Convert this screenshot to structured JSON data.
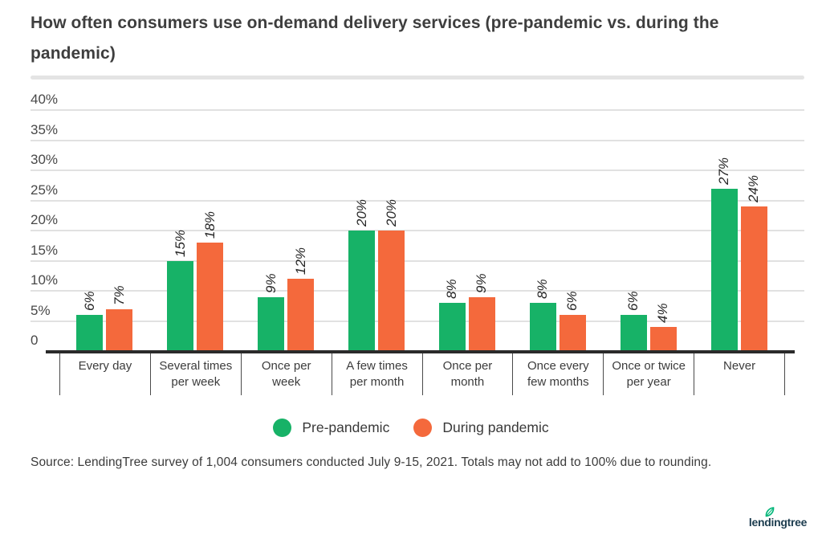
{
  "title_display": "How often consumers use on-demand delivery services (pre-pandemic vs. during the\npandemic)",
  "chart_data": {
    "type": "bar",
    "title": "How often consumers use on-demand delivery services (pre-pandemic vs. during the pandemic)",
    "categories": [
      "Every day",
      "Several times per week",
      "Once per week",
      "A few times per month",
      "Once per month",
      "Once every few months",
      "Once or twice per year",
      "Never"
    ],
    "category_display": [
      "Every day",
      "Several times\nper week",
      "Once per\nweek",
      "A few times\nper month",
      "Once per\nmonth",
      "Once every\nfew months",
      "Once or twice\nper year",
      "Never"
    ],
    "series": [
      {
        "name": "Pre-pandemic",
        "color": "#17b267",
        "values": [
          6,
          15,
          9,
          20,
          8,
          8,
          6,
          27
        ]
      },
      {
        "name": "During pandemic",
        "color": "#f4693c",
        "values": [
          7,
          18,
          12,
          20,
          9,
          6,
          4,
          24
        ]
      }
    ],
    "value_labels": [
      [
        "6%",
        "15%",
        "9%",
        "20%",
        "8%",
        "8%",
        "6%",
        "27%"
      ],
      [
        "7%",
        "18%",
        "12%",
        "20%",
        "9%",
        "6%",
        "4%",
        "24%"
      ]
    ],
    "ylim": [
      0,
      40
    ],
    "y_ticks": [
      {
        "value": 0,
        "label": "0"
      },
      {
        "value": 5,
        "label": "5%"
      },
      {
        "value": 10,
        "label": "10%"
      },
      {
        "value": 15,
        "label": "15%"
      },
      {
        "value": 20,
        "label": "20%"
      },
      {
        "value": 25,
        "label": "25%"
      },
      {
        "value": 30,
        "label": "30%"
      },
      {
        "value": 35,
        "label": "35%"
      },
      {
        "value": 40,
        "label": "40%"
      }
    ],
    "grid": true,
    "legend_position": "bottom",
    "gridline_color": "#e1e1e1",
    "axis_color": "#2b2b2b"
  },
  "legend": {
    "items": [
      {
        "label": "Pre-pandemic",
        "color": "#17b267"
      },
      {
        "label": "During pandemic",
        "color": "#f4693c"
      }
    ]
  },
  "source": "Source: LendingTree survey of 1,004 consumers conducted July 9-15, 2021. Totals may not add to 100% due to rounding.",
  "logo": {
    "text": "lendingtree",
    "leaf_color": "#00b478",
    "text_color": "#1d3d4f"
  }
}
